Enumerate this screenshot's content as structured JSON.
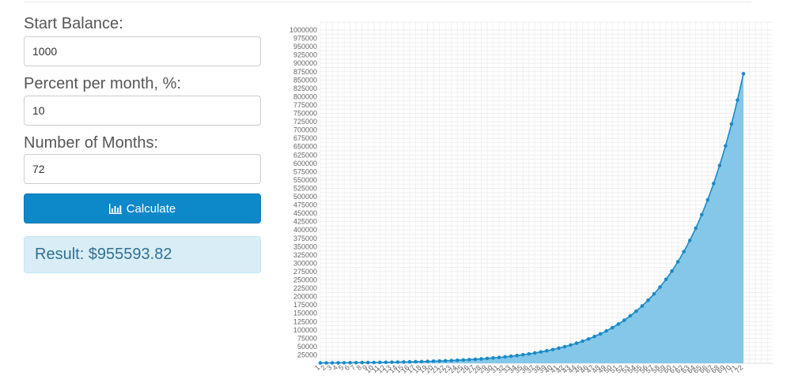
{
  "form": {
    "start_balance_label": "Start Balance:",
    "start_balance_value": "1000",
    "percent_label": "Percent per month, %:",
    "percent_value": "10",
    "months_label": "Number of Months:",
    "months_value": "72",
    "calculate_label": "Calculate",
    "calculate_icon": "bar-chart-icon",
    "result_text": "Result: $955593.82"
  },
  "chart_data": {
    "type": "area",
    "title": "",
    "xlabel": "",
    "ylabel": "",
    "start_balance": 1000,
    "monthly_rate_percent": 10,
    "months": 72,
    "x": [
      1,
      2,
      3,
      4,
      5,
      6,
      7,
      8,
      9,
      10,
      11,
      12,
      13,
      14,
      15,
      16,
      17,
      18,
      19,
      20,
      21,
      22,
      23,
      24,
      25,
      26,
      27,
      28,
      29,
      30,
      31,
      32,
      33,
      34,
      35,
      36,
      37,
      38,
      39,
      40,
      41,
      42,
      43,
      44,
      45,
      46,
      47,
      48,
      49,
      50,
      51,
      52,
      53,
      54,
      55,
      56,
      57,
      58,
      59,
      60,
      61,
      62,
      63,
      64,
      65,
      66,
      67,
      68,
      69,
      70,
      71,
      72
    ],
    "ylim": [
      0,
      1000000
    ],
    "y_tick_step": 25000,
    "grid": true,
    "fill_color": "#7ec4e8",
    "line_color": "#1a8ac6"
  }
}
